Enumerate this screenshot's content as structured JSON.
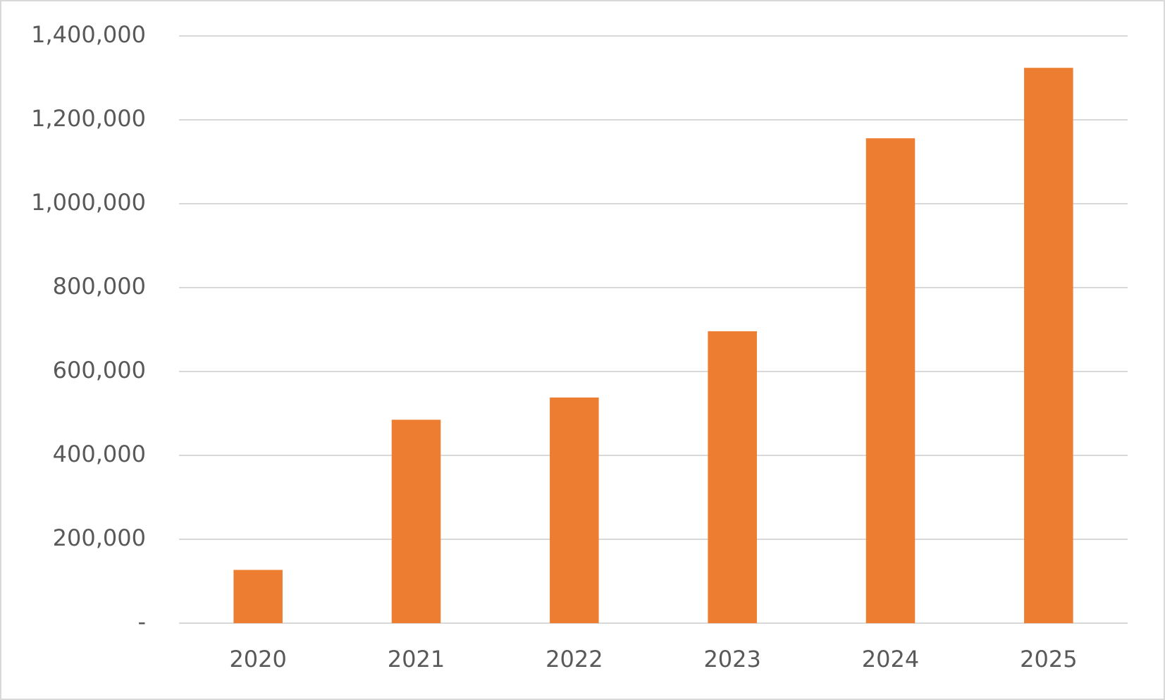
{
  "chart_data": {
    "type": "bar",
    "categories": [
      "2020",
      "2021",
      "2022",
      "2023",
      "2024",
      "2025"
    ],
    "values": [
      127000,
      485000,
      538000,
      696000,
      1156000,
      1324000
    ],
    "color": "#ed7d31",
    "ylim": [
      0,
      1400000
    ],
    "yticks": [
      {
        "value": 0,
        "label": "-"
      },
      {
        "value": 200000,
        "label": "200,000"
      },
      {
        "value": 400000,
        "label": "400,000"
      },
      {
        "value": 600000,
        "label": "600,000"
      },
      {
        "value": 800000,
        "label": "800,000"
      },
      {
        "value": 1000000,
        "label": "1,000,000"
      },
      {
        "value": 1200000,
        "label": "1,200,000"
      },
      {
        "value": 1400000,
        "label": "1,400,000"
      }
    ],
    "grid": true
  }
}
